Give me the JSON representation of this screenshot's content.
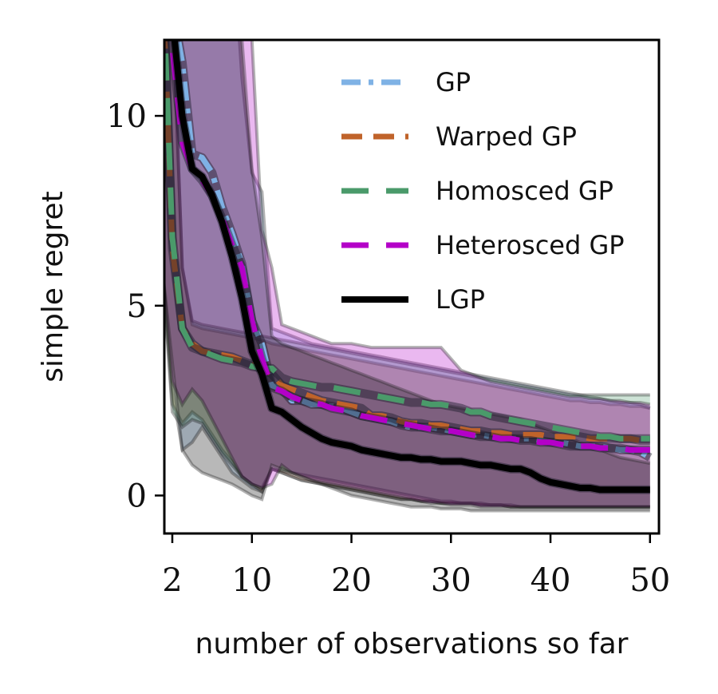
{
  "chart_data": {
    "type": "line",
    "xlabel": "number of observations so far",
    "ylabel": "simple regret",
    "xlim": [
      1.2,
      50.9
    ],
    "ylim": [
      -1.0,
      12.0
    ],
    "xticks": [
      {
        "value": 2,
        "label": "2"
      },
      {
        "value": 10,
        "label": "10"
      },
      {
        "value": 20,
        "label": "20"
      },
      {
        "value": 30,
        "label": "30"
      },
      {
        "value": 40,
        "label": "40"
      },
      {
        "value": 50,
        "label": "50"
      }
    ],
    "yticks": [
      {
        "value": 0,
        "label": "0"
      },
      {
        "value": 5,
        "label": "5"
      },
      {
        "value": 10,
        "label": "10"
      }
    ],
    "grid": false,
    "legend_position": "top-right",
    "x": [
      1,
      2,
      3,
      4,
      5,
      6,
      7,
      8,
      9,
      10,
      11,
      12,
      13,
      14,
      15,
      16,
      17,
      18,
      19,
      20,
      21,
      22,
      23,
      24,
      25,
      26,
      27,
      28,
      29,
      30,
      31,
      32,
      33,
      34,
      35,
      36,
      37,
      38,
      39,
      40,
      41,
      42,
      43,
      44,
      45,
      46,
      47,
      48,
      49,
      50
    ],
    "series": [
      {
        "name": "GP",
        "color": "#7fb2e5",
        "dash": "dashdot",
        "values": [
          14.0,
          12.9,
          11.4,
          9.0,
          8.9,
          8.5,
          7.6,
          6.9,
          6.1,
          4.6,
          4.0,
          2.9,
          2.8,
          2.5,
          2.5,
          2.4,
          2.4,
          2.35,
          2.3,
          2.2,
          2.1,
          2.05,
          2.0,
          1.95,
          1.85,
          1.8,
          1.8,
          1.8,
          1.75,
          1.7,
          1.65,
          1.6,
          1.6,
          1.55,
          1.55,
          1.5,
          1.5,
          1.5,
          1.45,
          1.4,
          1.4,
          1.35,
          1.3,
          1.3,
          1.3,
          1.25,
          1.2,
          1.2,
          1.15,
          1.0
        ],
        "lower": [
          6.0,
          2.8,
          1.2,
          1.4,
          1.8,
          1.4,
          1.0,
          0.6,
          0.4,
          0.2,
          0.1,
          0.7,
          0.6,
          0.5,
          0.4,
          0.35,
          0.3,
          0.25,
          0.2,
          0.15,
          0.1,
          0.05,
          0.0,
          -0.05,
          -0.1,
          -0.1,
          -0.15,
          -0.15,
          -0.2,
          -0.2,
          -0.2,
          -0.2,
          -0.25,
          -0.25,
          -0.25,
          -0.3,
          -0.3,
          -0.3,
          -0.3,
          -0.3,
          -0.3,
          -0.3,
          -0.3,
          -0.3,
          -0.3,
          -0.3,
          -0.3,
          -0.3,
          -0.3,
          -0.3
        ],
        "upper": [
          16.0,
          16.0,
          16.0,
          16.0,
          16.0,
          16.0,
          16.0,
          15.0,
          11.0,
          8.5,
          8.0,
          4.4,
          4.3,
          4.2,
          4.1,
          4.0,
          3.95,
          3.9,
          3.85,
          3.8,
          3.75,
          3.7,
          3.65,
          3.6,
          3.55,
          3.5,
          3.45,
          3.4,
          3.35,
          3.3,
          3.25,
          3.2,
          3.15,
          3.1,
          3.05,
          3.0,
          2.95,
          2.9,
          2.85,
          2.8,
          2.75,
          2.7,
          2.65,
          2.6,
          2.55,
          2.5,
          2.45,
          2.45,
          2.4,
          2.3
        ]
      },
      {
        "name": "Warped GP",
        "color": "#c0632a",
        "dash": "dash",
        "values": [
          14.0,
          6.5,
          4.4,
          4.0,
          3.8,
          3.75,
          3.7,
          3.65,
          3.55,
          3.45,
          3.35,
          3.2,
          2.9,
          2.8,
          2.7,
          2.6,
          2.5,
          2.45,
          2.4,
          2.35,
          2.3,
          2.1,
          2.1,
          2.05,
          1.95,
          1.9,
          1.9,
          1.85,
          1.85,
          1.8,
          1.75,
          1.7,
          1.7,
          1.65,
          1.65,
          1.6,
          1.6,
          1.6,
          1.6,
          1.55,
          1.55,
          1.55,
          1.55,
          1.5,
          1.5,
          1.5,
          1.5,
          1.5,
          1.45,
          1.45
        ],
        "lower": [
          6.0,
          2.4,
          1.9,
          2.2,
          2.0,
          1.6,
          1.2,
          0.9,
          0.5,
          0.3,
          0.1,
          0.7,
          0.6,
          0.5,
          0.4,
          0.35,
          0.3,
          0.25,
          0.2,
          0.15,
          0.1,
          0.05,
          0.0,
          -0.05,
          -0.1,
          -0.1,
          -0.15,
          -0.15,
          -0.2,
          -0.2,
          -0.2,
          -0.2,
          -0.25,
          -0.25,
          -0.25,
          -0.3,
          -0.3,
          -0.3,
          -0.3,
          -0.3,
          -0.3,
          -0.3,
          -0.3,
          -0.3,
          -0.3,
          -0.3,
          -0.3,
          -0.3,
          -0.3,
          -0.3
        ],
        "upper": [
          16.0,
          13.0,
          6.0,
          4.5,
          4.4,
          4.35,
          4.3,
          4.25,
          4.2,
          4.15,
          4.1,
          4.0,
          3.95,
          3.9,
          3.85,
          3.8,
          3.75,
          3.7,
          3.65,
          3.6,
          3.55,
          3.5,
          3.45,
          3.4,
          3.35,
          3.3,
          3.25,
          3.2,
          3.15,
          3.1,
          3.05,
          3.0,
          2.95,
          2.9,
          2.85,
          2.8,
          2.75,
          2.7,
          2.65,
          2.6,
          2.55,
          2.5,
          2.5,
          2.45,
          2.45,
          2.4,
          2.4,
          2.35,
          2.35,
          2.3
        ]
      },
      {
        "name": "Homosced GP",
        "color": "#4a9a6a",
        "dash": "longdash",
        "values": [
          14.0,
          6.8,
          4.4,
          3.9,
          3.8,
          3.7,
          3.6,
          3.55,
          3.5,
          3.4,
          3.35,
          3.35,
          3.1,
          3.0,
          2.95,
          2.9,
          2.85,
          2.85,
          2.8,
          2.75,
          2.7,
          2.65,
          2.6,
          2.55,
          2.5,
          2.45,
          2.45,
          2.4,
          2.4,
          2.35,
          2.3,
          2.2,
          2.2,
          2.1,
          2.05,
          2.0,
          1.95,
          1.9,
          1.85,
          1.8,
          1.75,
          1.7,
          1.65,
          1.6,
          1.55,
          1.55,
          1.5,
          1.5,
          1.5,
          1.5
        ],
        "lower": [
          6.0,
          2.2,
          1.8,
          2.0,
          1.9,
          1.5,
          1.1,
          0.8,
          0.5,
          0.3,
          0.2,
          0.7,
          0.65,
          0.6,
          0.55,
          0.5,
          0.45,
          0.4,
          0.35,
          0.3,
          0.25,
          0.2,
          0.15,
          0.1,
          0.05,
          0.0,
          -0.05,
          -0.1,
          -0.15,
          -0.15,
          -0.2,
          -0.2,
          -0.2,
          -0.25,
          -0.25,
          -0.25,
          -0.3,
          -0.3,
          -0.3,
          -0.3,
          -0.3,
          -0.3,
          -0.3,
          -0.3,
          -0.3,
          -0.3,
          -0.3,
          -0.3,
          -0.3,
          -0.3
        ],
        "upper": [
          16.0,
          13.0,
          6.0,
          4.6,
          4.5,
          4.45,
          4.4,
          4.35,
          4.3,
          4.25,
          4.2,
          4.15,
          4.1,
          4.05,
          4.0,
          3.95,
          3.9,
          3.85,
          3.8,
          3.75,
          3.7,
          3.65,
          3.6,
          3.55,
          3.5,
          3.45,
          3.4,
          3.35,
          3.3,
          3.25,
          3.2,
          3.15,
          3.1,
          3.05,
          3.0,
          2.95,
          2.9,
          2.85,
          2.8,
          2.75,
          2.7,
          2.65,
          2.65,
          2.65,
          2.65,
          2.65,
          2.65,
          2.65,
          2.65,
          2.65
        ]
      },
      {
        "name": "Heterosced GP",
        "color": "#b400c8",
        "dash": "longdash",
        "values": [
          14.0,
          11.8,
          9.3,
          8.6,
          8.3,
          7.9,
          7.3,
          6.6,
          6.0,
          4.6,
          3.6,
          2.85,
          2.75,
          2.6,
          2.5,
          2.45,
          2.4,
          2.3,
          2.25,
          2.2,
          2.1,
          2.05,
          2.0,
          1.95,
          1.9,
          1.85,
          1.8,
          1.75,
          1.7,
          1.7,
          1.65,
          1.6,
          1.55,
          1.55,
          1.5,
          1.5,
          1.45,
          1.45,
          1.4,
          1.4,
          1.35,
          1.3,
          1.3,
          1.3,
          1.25,
          1.25,
          1.25,
          1.2,
          1.2,
          1.2
        ],
        "lower": [
          6.0,
          3.0,
          2.4,
          2.8,
          2.5,
          2.0,
          1.5,
          1.0,
          0.5,
          0.3,
          0.2,
          0.3,
          0.8,
          0.6,
          0.5,
          0.4,
          0.35,
          0.3,
          0.25,
          0.2,
          0.15,
          0.1,
          0.05,
          0.0,
          -0.05,
          -0.1,
          -0.15,
          -0.2,
          -0.2,
          -0.25,
          -0.25,
          -0.25,
          -0.3,
          -0.3,
          -0.3,
          -0.3,
          -0.3,
          -0.3,
          -0.3,
          -0.3,
          -0.3,
          -0.3,
          -0.3,
          -0.3,
          -0.3,
          -0.3,
          -0.3,
          -0.3,
          -0.3,
          -0.3
        ],
        "upper": [
          16.0,
          16.0,
          16.0,
          16.0,
          16.0,
          16.0,
          15.0,
          14.5,
          13.0,
          12.0,
          7.0,
          6.0,
          4.5,
          4.4,
          4.3,
          4.2,
          4.1,
          4.0,
          4.0,
          4.0,
          3.95,
          3.9,
          3.9,
          3.9,
          3.9,
          3.9,
          3.9,
          3.9,
          3.9,
          3.6,
          3.3,
          3.2,
          3.1,
          3.0,
          2.95,
          2.9,
          2.85,
          2.8,
          2.75,
          2.7,
          2.65,
          2.6,
          2.6,
          2.55,
          2.55,
          2.5,
          2.5,
          2.45,
          2.45,
          2.4
        ]
      },
      {
        "name": "LGP",
        "color": "#000000",
        "dash": "solid",
        "values": [
          14.0,
          12.6,
          10.0,
          8.6,
          8.4,
          7.9,
          7.2,
          6.3,
          5.2,
          3.8,
          3.2,
          2.3,
          2.2,
          2.0,
          1.8,
          1.65,
          1.5,
          1.4,
          1.35,
          1.3,
          1.2,
          1.15,
          1.1,
          1.05,
          1.0,
          1.0,
          0.95,
          0.95,
          0.9,
          0.9,
          0.9,
          0.85,
          0.8,
          0.8,
          0.75,
          0.7,
          0.7,
          0.6,
          0.45,
          0.35,
          0.3,
          0.25,
          0.2,
          0.2,
          0.15,
          0.15,
          0.15,
          0.15,
          0.15,
          0.15
        ],
        "lower": [
          6.0,
          3.5,
          1.2,
          0.8,
          0.6,
          0.5,
          0.4,
          0.3,
          0.15,
          0.0,
          -0.1,
          0.8,
          0.7,
          0.6,
          0.5,
          0.4,
          0.3,
          0.2,
          0.1,
          0.0,
          -0.05,
          -0.1,
          -0.15,
          -0.2,
          -0.25,
          -0.3,
          -0.3,
          -0.3,
          -0.35,
          -0.35,
          -0.35,
          -0.4,
          -0.4,
          -0.4,
          -0.4,
          -0.4,
          -0.4,
          -0.4,
          -0.4,
          -0.4,
          -0.4,
          -0.4,
          -0.4,
          -0.4,
          -0.4,
          -0.4,
          -0.4,
          -0.4,
          -0.4,
          -0.4
        ],
        "upper": [
          16.0,
          16.0,
          16.0,
          16.0,
          16.0,
          16.0,
          15.5,
          14.0,
          12.0,
          8.6,
          6.8,
          4.2,
          4.0,
          3.9,
          3.8,
          3.7,
          3.6,
          3.5,
          3.4,
          3.3,
          3.2,
          3.1,
          3.0,
          2.9,
          2.8,
          2.7,
          2.6,
          2.5,
          2.4,
          2.35,
          2.3,
          2.25,
          2.2,
          2.15,
          2.1,
          2.05,
          2.0,
          1.9,
          1.8,
          1.7,
          1.6,
          1.5,
          1.4,
          1.3,
          1.2,
          1.1,
          1.0,
          0.95,
          0.9,
          0.85
        ]
      }
    ]
  }
}
